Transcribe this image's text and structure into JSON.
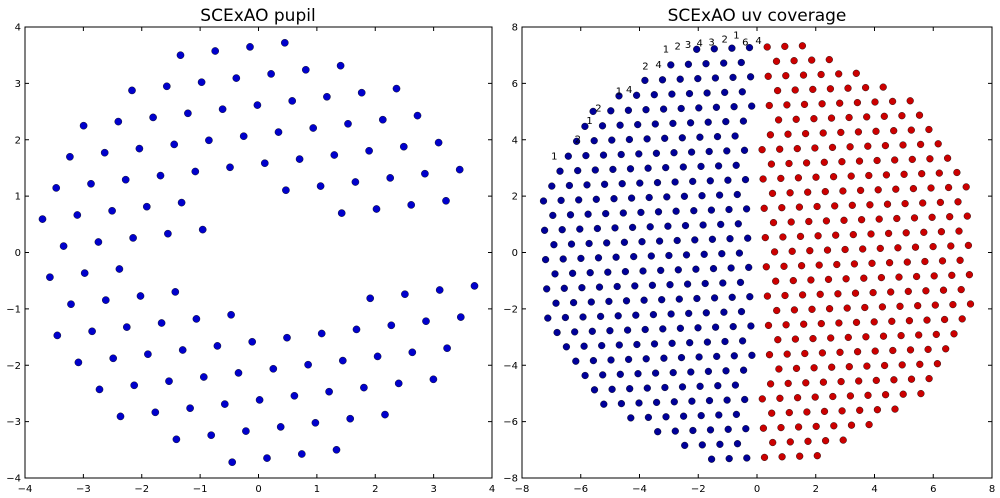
{
  "chart_data": [
    {
      "type": "scatter",
      "title": "SCExAO pupil",
      "xlim": [
        -4,
        4
      ],
      "ylim": [
        -4,
        4
      ],
      "xticks": [
        -4,
        -3,
        -2,
        -1,
        0,
        1,
        2,
        3,
        4
      ],
      "yticks": [
        -4,
        -3,
        -2,
        -1,
        0,
        1,
        2,
        3,
        4
      ],
      "grid": false,
      "legend": "none",
      "pattern": {
        "kind": "hexagonal-grid",
        "pitch": 0.6,
        "outer_radius": 3.75,
        "gap_region": {
          "x_min": -0.9,
          "x_max": 1.4,
          "y_min": -1.05,
          "y_max": 1.05
        },
        "gap_extra": {
          "x_min": -2.0,
          "x_max": -0.9,
          "y_min": -0.45,
          "y_max": 0.2
        }
      },
      "series": [
        {
          "color": "#0000cc",
          "marker": "circle"
        }
      ]
    },
    {
      "type": "scatter",
      "title": "SCExAO uv coverage",
      "xlim": [
        -8,
        8
      ],
      "ylim": [
        -8,
        8
      ],
      "xticks": [
        -8,
        -6,
        -4,
        -2,
        0,
        2,
        4,
        6,
        8
      ],
      "yticks": [
        -8,
        -6,
        -4,
        -2,
        0,
        2,
        4,
        6,
        8
      ],
      "grid": false,
      "legend": "none",
      "pattern": {
        "kind": "hexagonal-grid",
        "pitch": 0.6,
        "outer_radius": 7.5
      },
      "series": [
        {
          "color": "#000099",
          "marker": "circle",
          "side": "x<0"
        },
        {
          "color": "#cc0000",
          "marker": "circle",
          "side": "x>0"
        }
      ],
      "annotations": [
        {
          "x": -3.1,
          "y": 7.1,
          "text": "1"
        },
        {
          "x": -2.7,
          "y": 7.2,
          "text": "2"
        },
        {
          "x": -2.35,
          "y": 7.25,
          "text": "3"
        },
        {
          "x": -1.95,
          "y": 7.3,
          "text": "4"
        },
        {
          "x": -1.55,
          "y": 7.35,
          "text": "3"
        },
        {
          "x": -1.1,
          "y": 7.45,
          "text": "2"
        },
        {
          "x": -0.7,
          "y": 7.6,
          "text": "1"
        },
        {
          "x": -0.4,
          "y": 7.35,
          "text": "6"
        },
        {
          "x": 0.05,
          "y": 7.4,
          "text": "4"
        },
        {
          "x": -3.8,
          "y": 6.5,
          "text": "2"
        },
        {
          "x": -3.35,
          "y": 6.55,
          "text": "4"
        },
        {
          "x": -4.7,
          "y": 5.6,
          "text": "1"
        },
        {
          "x": -4.35,
          "y": 5.65,
          "text": "4"
        },
        {
          "x": -5.4,
          "y": 5.0,
          "text": "2"
        },
        {
          "x": -5.7,
          "y": 4.55,
          "text": "1"
        },
        {
          "x": -6.1,
          "y": 3.9,
          "text": "2"
        },
        {
          "x": -6.9,
          "y": 3.3,
          "text": "1"
        }
      ]
    }
  ]
}
